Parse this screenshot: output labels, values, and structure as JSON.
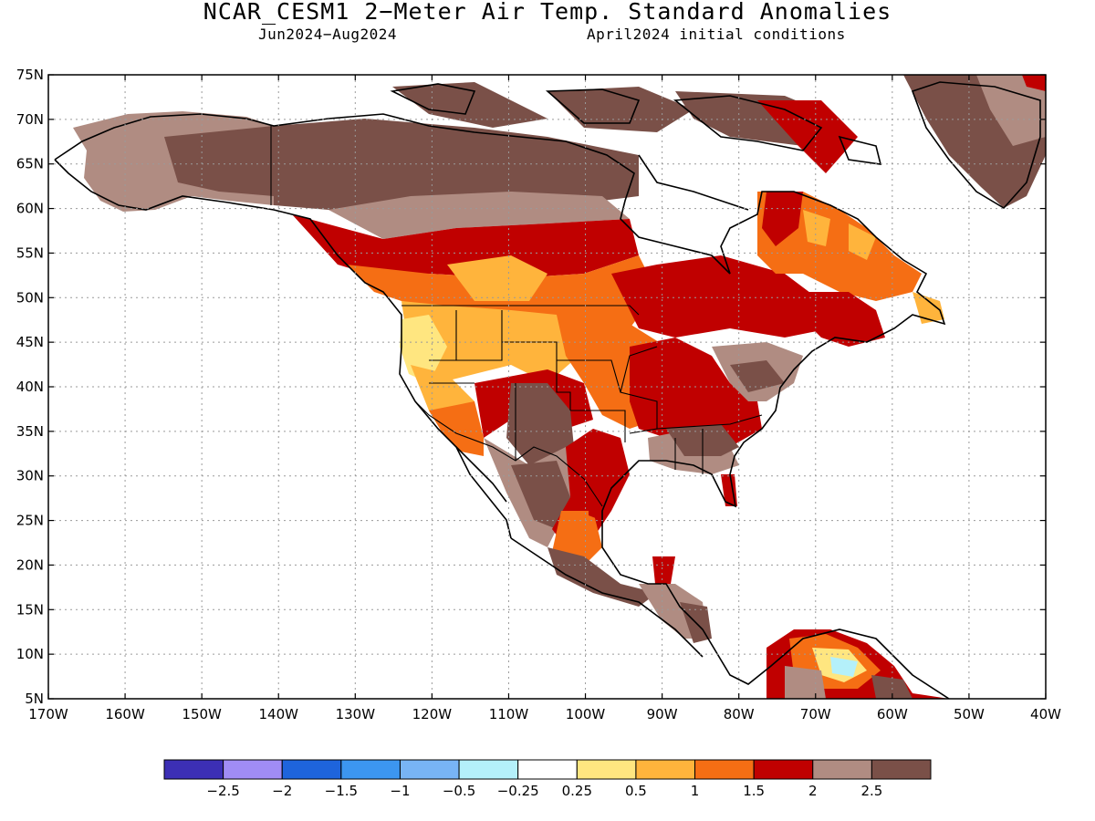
{
  "title": "NCAR_CESM1 2−Meter Air Temp. Standard Anomalies",
  "subtitle_left": "Jun2024−Aug2024",
  "subtitle_right": "April2024 initial conditions",
  "lat_labels": [
    "75N",
    "70N",
    "65N",
    "60N",
    "55N",
    "50N",
    "45N",
    "40N",
    "35N",
    "30N",
    "25N",
    "20N",
    "15N",
    "10N",
    "5N"
  ],
  "lon_labels": [
    "170W",
    "160W",
    "150W",
    "140W",
    "130W",
    "120W",
    "110W",
    "100W",
    "90W",
    "80W",
    "70W",
    "60W",
    "50W",
    "40W"
  ],
  "colorbar": {
    "colors": [
      "#3c2fb5",
      "#a08cf5",
      "#1e64dc",
      "#3c96f0",
      "#78b4f5",
      "#b4f0fa",
      "#ffffff",
      "#ffe680",
      "#ffb43c",
      "#f56e14",
      "#c00000",
      "#b08c82",
      "#7a5048"
    ],
    "labels": [
      "−2.5",
      "−2",
      "−1.5",
      "−1",
      "−0.5",
      "−0.25",
      "0.25",
      "0.5",
      "1",
      "1.5",
      "2",
      "2.5"
    ]
  }
}
